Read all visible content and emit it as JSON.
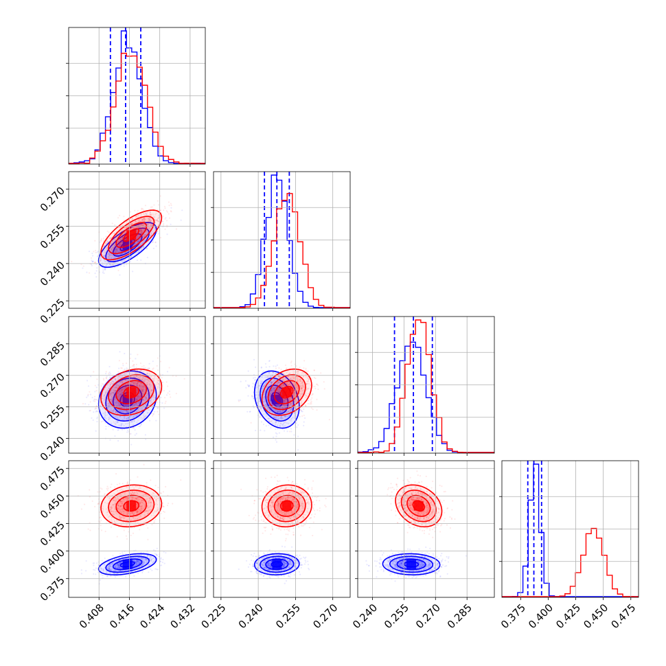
{
  "chart_data": {
    "type": "corner",
    "title": "",
    "n_params": 4,
    "params": [
      "",
      "",
      "",
      ""
    ],
    "grid": true,
    "series": [
      {
        "name": "blue",
        "color": "#0000ff",
        "means": [
          0.4155,
          0.2475,
          0.2585,
          0.388
        ],
        "sigmas": [
          0.0038,
          0.0045,
          0.0068,
          0.0048
        ],
        "correlations": {
          "1-0": 0.7,
          "2-0": 0.15,
          "2-1": -0.25,
          "3-0": 0.45,
          "3-1": 0.05,
          "3-2": -0.05
        },
        "quantiles_1d": [
          [
            0.411,
            0.415,
            0.419
          ],
          [
            0.2425,
            0.2475,
            0.2525
          ],
          [
            0.2505,
            0.2595,
            0.2685
          ],
          [
            0.3815,
            0.387,
            0.394
          ]
        ]
      },
      {
        "name": "red",
        "color": "#ff0000",
        "means": [
          0.4165,
          0.2515,
          0.262,
          0.441
        ],
        "sigmas": [
          0.004,
          0.005,
          0.0055,
          0.0095
        ],
        "correlations": {
          "1-0": 0.7,
          "2-0": 0.25,
          "2-1": 0.3,
          "3-0": 0.1,
          "3-1": 0.05,
          "3-2": -0.25
        },
        "quantiles_1d": null
      }
    ],
    "axes": [
      {
        "range": [
          0.4,
          0.436
        ],
        "ticks": [
          0.408,
          0.416,
          0.424,
          0.432
        ],
        "tick_labels": [
          "0.408",
          "0.416",
          "0.424",
          "0.432"
        ]
      },
      {
        "range": [
          0.222,
          0.277
        ],
        "ticks": [
          0.225,
          0.24,
          0.255,
          0.27
        ],
        "tick_labels": [
          "0.225",
          "0.240",
          "0.255",
          "0.270"
        ]
      },
      {
        "range": [
          0.233,
          0.298
        ],
        "ticks": [
          0.24,
          0.255,
          0.27,
          0.285
        ],
        "tick_labels": [
          "0.240",
          "0.255",
          "0.270",
          "0.285"
        ]
      },
      {
        "range": [
          0.358,
          0.482
        ],
        "ticks": [
          0.375,
          0.4,
          0.425,
          0.45,
          0.475
        ],
        "tick_labels": [
          "0.375",
          "0.400",
          "0.425",
          "0.450",
          "0.475"
        ]
      }
    ],
    "histogram_bins": 20,
    "contour_levels_sigma": [
      0.5,
      1.0,
      1.5,
      2.0
    ]
  }
}
